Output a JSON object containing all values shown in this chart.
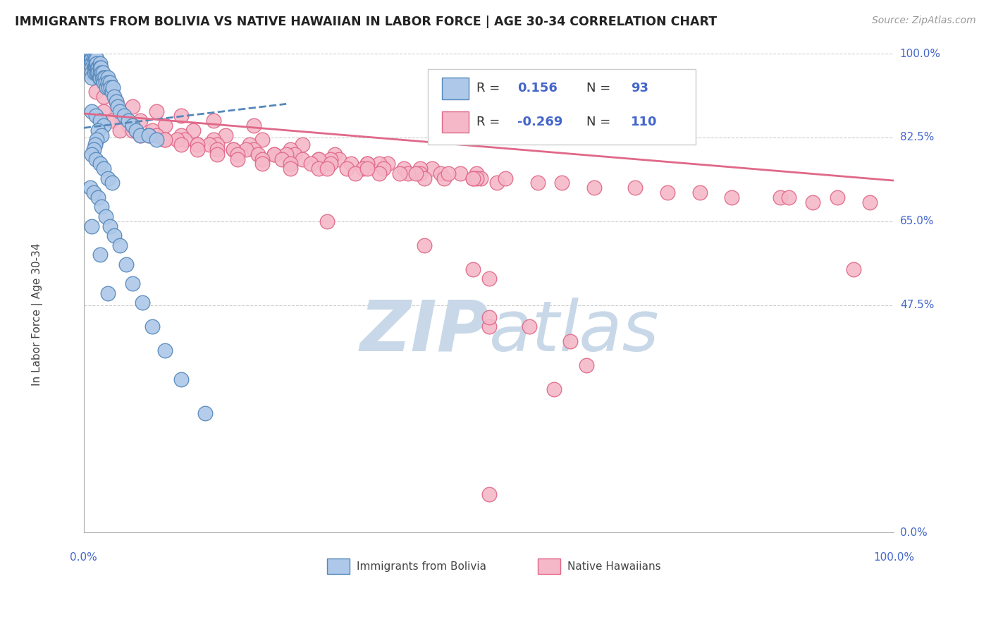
{
  "title": "IMMIGRANTS FROM BOLIVIA VS NATIVE HAWAIIAN IN LABOR FORCE | AGE 30-34 CORRELATION CHART",
  "source": "Source: ZipAtlas.com",
  "ylabel": "In Labor Force | Age 30-34",
  "xlim": [
    0.0,
    1.0
  ],
  "ylim": [
    0.0,
    1.0
  ],
  "ytick_labels": [
    "100.0%",
    "82.5%",
    "65.0%",
    "47.5%",
    "0.0%"
  ],
  "ytick_values": [
    1.0,
    0.825,
    0.65,
    0.475,
    0.0
  ],
  "xtick_labels_left": "0.0%",
  "xtick_labels_right": "100.0%",
  "grid_color": "#cccccc",
  "background_color": "#ffffff",
  "bolivia_color": "#adc8e8",
  "hawaii_color": "#f5b8c8",
  "bolivia_edge_color": "#5588bb",
  "hawaii_edge_color": "#e06888",
  "bolivia_R": 0.156,
  "bolivia_N": 93,
  "hawaii_R": -0.269,
  "hawaii_N": 110,
  "value_color": "#4466cc",
  "label_color": "#333333",
  "legend_border_color": "#cccccc",
  "watermark_zip": "ZIP",
  "watermark_atlas": "atlas",
  "watermark_color": "#c8d8e8",
  "bolivia_trend_x": [
    0.0,
    0.25
  ],
  "bolivia_trend_y_start": 0.845,
  "bolivia_trend_y_end": 0.895,
  "hawaii_trend_x": [
    0.0,
    1.0
  ],
  "hawaii_trend_y_start": 0.875,
  "hawaii_trend_y_end": 0.735,
  "bolivia_scatter_x": [
    0.005,
    0.006,
    0.007,
    0.007,
    0.008,
    0.009,
    0.01,
    0.01,
    0.01,
    0.01,
    0.01,
    0.01,
    0.012,
    0.012,
    0.012,
    0.013,
    0.013,
    0.014,
    0.014,
    0.015,
    0.015,
    0.015,
    0.016,
    0.016,
    0.017,
    0.017,
    0.018,
    0.018,
    0.019,
    0.02,
    0.02,
    0.02,
    0.02,
    0.021,
    0.022,
    0.023,
    0.024,
    0.025,
    0.025,
    0.026,
    0.027,
    0.028,
    0.03,
    0.03,
    0.031,
    0.032,
    0.033,
    0.035,
    0.036,
    0.038,
    0.04,
    0.042,
    0.045,
    0.05,
    0.055,
    0.06,
    0.065,
    0.07,
    0.08,
    0.09,
    0.01,
    0.015,
    0.02,
    0.025,
    0.018,
    0.022,
    0.016,
    0.014,
    0.012,
    0.01,
    0.015,
    0.02,
    0.025,
    0.03,
    0.035,
    0.008,
    0.012,
    0.018,
    0.022,
    0.027,
    0.032,
    0.038,
    0.045,
    0.052,
    0.06,
    0.072,
    0.085,
    0.1,
    0.12,
    0.15,
    0.01,
    0.02,
    0.03
  ],
  "bolivia_scatter_y": [
    1.0,
    1.0,
    1.0,
    0.99,
    1.0,
    0.99,
    1.0,
    0.99,
    0.98,
    0.97,
    0.96,
    0.95,
    1.0,
    0.99,
    0.98,
    0.97,
    0.96,
    0.99,
    0.97,
    0.98,
    0.97,
    0.96,
    0.99,
    0.98,
    0.97,
    0.96,
    0.97,
    0.96,
    0.95,
    0.98,
    0.97,
    0.96,
    0.95,
    0.97,
    0.96,
    0.95,
    0.96,
    0.95,
    0.94,
    0.95,
    0.94,
    0.93,
    0.95,
    0.94,
    0.93,
    0.94,
    0.93,
    0.92,
    0.93,
    0.91,
    0.9,
    0.89,
    0.88,
    0.87,
    0.86,
    0.85,
    0.84,
    0.83,
    0.83,
    0.82,
    0.88,
    0.87,
    0.86,
    0.85,
    0.84,
    0.83,
    0.82,
    0.81,
    0.8,
    0.79,
    0.78,
    0.77,
    0.76,
    0.74,
    0.73,
    0.72,
    0.71,
    0.7,
    0.68,
    0.66,
    0.64,
    0.62,
    0.6,
    0.56,
    0.52,
    0.48,
    0.43,
    0.38,
    0.32,
    0.25,
    0.64,
    0.58,
    0.5
  ],
  "hawaii_scatter_x": [
    0.015,
    0.025,
    0.04,
    0.06,
    0.09,
    0.12,
    0.16,
    0.21,
    0.025,
    0.045,
    0.07,
    0.1,
    0.135,
    0.175,
    0.22,
    0.27,
    0.035,
    0.055,
    0.085,
    0.12,
    0.16,
    0.205,
    0.255,
    0.31,
    0.045,
    0.07,
    0.1,
    0.14,
    0.185,
    0.235,
    0.29,
    0.35,
    0.06,
    0.09,
    0.125,
    0.165,
    0.21,
    0.26,
    0.315,
    0.375,
    0.08,
    0.115,
    0.155,
    0.2,
    0.25,
    0.305,
    0.365,
    0.43,
    0.1,
    0.14,
    0.185,
    0.235,
    0.29,
    0.35,
    0.415,
    0.485,
    0.12,
    0.165,
    0.215,
    0.27,
    0.33,
    0.395,
    0.465,
    0.14,
    0.19,
    0.245,
    0.305,
    0.37,
    0.44,
    0.165,
    0.22,
    0.28,
    0.345,
    0.415,
    0.49,
    0.19,
    0.255,
    0.325,
    0.4,
    0.48,
    0.22,
    0.29,
    0.365,
    0.445,
    0.255,
    0.335,
    0.42,
    0.51,
    0.3,
    0.39,
    0.485,
    0.35,
    0.45,
    0.41,
    0.52,
    0.48,
    0.59,
    0.56,
    0.68,
    0.63,
    0.76,
    0.72,
    0.86,
    0.8,
    0.93,
    0.87,
    0.97,
    0.9,
    0.95,
    0.5
  ],
  "hawaii_scatter_y": [
    0.92,
    0.91,
    0.9,
    0.89,
    0.88,
    0.87,
    0.86,
    0.85,
    0.88,
    0.87,
    0.86,
    0.85,
    0.84,
    0.83,
    0.82,
    0.81,
    0.86,
    0.85,
    0.84,
    0.83,
    0.82,
    0.81,
    0.8,
    0.79,
    0.84,
    0.83,
    0.82,
    0.81,
    0.8,
    0.79,
    0.78,
    0.77,
    0.84,
    0.83,
    0.82,
    0.81,
    0.8,
    0.79,
    0.78,
    0.77,
    0.83,
    0.82,
    0.81,
    0.8,
    0.79,
    0.78,
    0.77,
    0.76,
    0.82,
    0.81,
    0.8,
    0.79,
    0.78,
    0.77,
    0.76,
    0.75,
    0.81,
    0.8,
    0.79,
    0.78,
    0.77,
    0.76,
    0.75,
    0.8,
    0.79,
    0.78,
    0.77,
    0.76,
    0.75,
    0.79,
    0.78,
    0.77,
    0.76,
    0.75,
    0.74,
    0.78,
    0.77,
    0.76,
    0.75,
    0.74,
    0.77,
    0.76,
    0.75,
    0.74,
    0.76,
    0.75,
    0.74,
    0.73,
    0.76,
    0.75,
    0.74,
    0.76,
    0.75,
    0.75,
    0.74,
    0.74,
    0.73,
    0.73,
    0.72,
    0.72,
    0.71,
    0.71,
    0.7,
    0.7,
    0.7,
    0.7,
    0.69,
    0.69,
    0.55,
    0.43
  ]
}
